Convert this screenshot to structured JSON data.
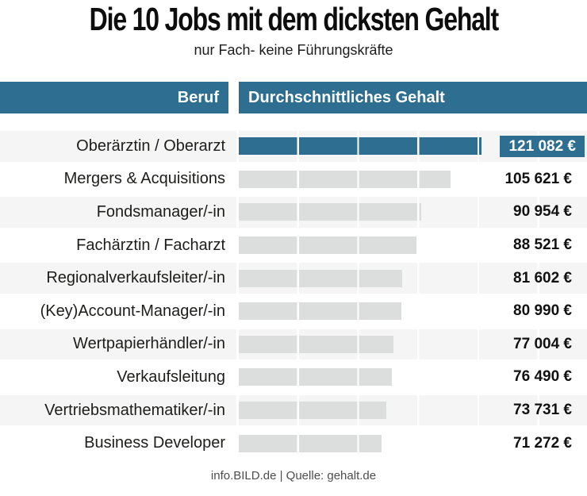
{
  "chart": {
    "columns": {
      "beruf": "Beruf",
      "gehalt": "Durchschnittliches Gehalt"
    },
    "footer": "info.BILD.de | Quelle: gehalt.de"
  },
  "chart_data": {
    "type": "bar",
    "orientation": "horizontal",
    "title": "Die 10 Jobs mit dem dicksten Gehalt",
    "subtitle": "nur Fach- keine Führungskräfte",
    "categories": [
      "Oberärztin / Oberarzt",
      "Mergers & Acquisitions",
      "Fondsmanager/-in",
      "Fachärztin / Facharzt",
      "Regionalverkaufsleiter/-in",
      "(Key)Account-Manager/-in",
      "Wertpapierhändler/-in",
      "Verkaufsleitung",
      "Vertriebsmathematiker/-in",
      "Business Developer"
    ],
    "values": [
      121082,
      105621,
      90954,
      88521,
      81602,
      80990,
      77004,
      76490,
      73731,
      71272
    ],
    "value_labels": [
      "121 082 €",
      "105 621 €",
      "90 954 €",
      "88 521 €",
      "81 602 €",
      "80 990 €",
      "77 004 €",
      "76 490 €",
      "73 731 €",
      "71 272 €"
    ],
    "unit": "€",
    "xlim": [
      0,
      125000
    ],
    "segment_interval_eur": 30000,
    "highlight_index": 0,
    "legend": false,
    "gridlines": "vertical white dividers every 30000 EUR",
    "colors": {
      "highlight_bar": "#2e6f91",
      "bar": "#dcdedd",
      "header_bg": "#2e6f91",
      "header_text": "#ffffff",
      "row_stripe": "#f4f5f4",
      "value_text": "#111111",
      "badge_text": "#ffffff"
    }
  }
}
